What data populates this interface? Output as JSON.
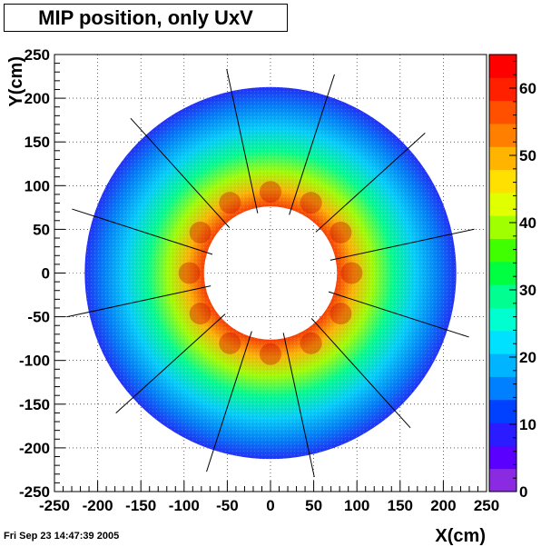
{
  "chart_data": {
    "type": "heatmap",
    "title": "MIP position, only UxV",
    "xlabel": "X(cm)",
    "ylabel": "Y(cm)",
    "xlim": [
      -250,
      250
    ],
    "ylim": [
      -250,
      250
    ],
    "xticks": [
      "-250",
      "-200",
      "-150",
      "-100",
      "-50",
      "0",
      "50",
      "100",
      "150",
      "200",
      "250"
    ],
    "yticks": [
      "250",
      "200",
      "150",
      "100",
      "50",
      "0",
      "-50",
      "-100",
      "-150",
      "-200",
      "-250"
    ],
    "color_scale": {
      "min": 0,
      "max": 65,
      "tick_labels": [
        "0",
        "10",
        "20",
        "30",
        "40",
        "50",
        "60"
      ],
      "colors": [
        "#8a2be2",
        "#5a00ff",
        "#2a1cff",
        "#0040ff",
        "#0080ff",
        "#00b4ff",
        "#00e0ff",
        "#00ffd0",
        "#00ff90",
        "#00ff40",
        "#40ff00",
        "#a0ff00",
        "#e0ff00",
        "#ffe000",
        "#ffb400",
        "#ff8000",
        "#ff5000",
        "#ff2000",
        "#ff0000"
      ]
    },
    "ring": {
      "inner_radius_cm": 77,
      "outer_radius_cm": 215
    },
    "grid": true,
    "sector_count": 12,
    "timestamp": "Fri Sep 23 14:47:39 2005"
  }
}
